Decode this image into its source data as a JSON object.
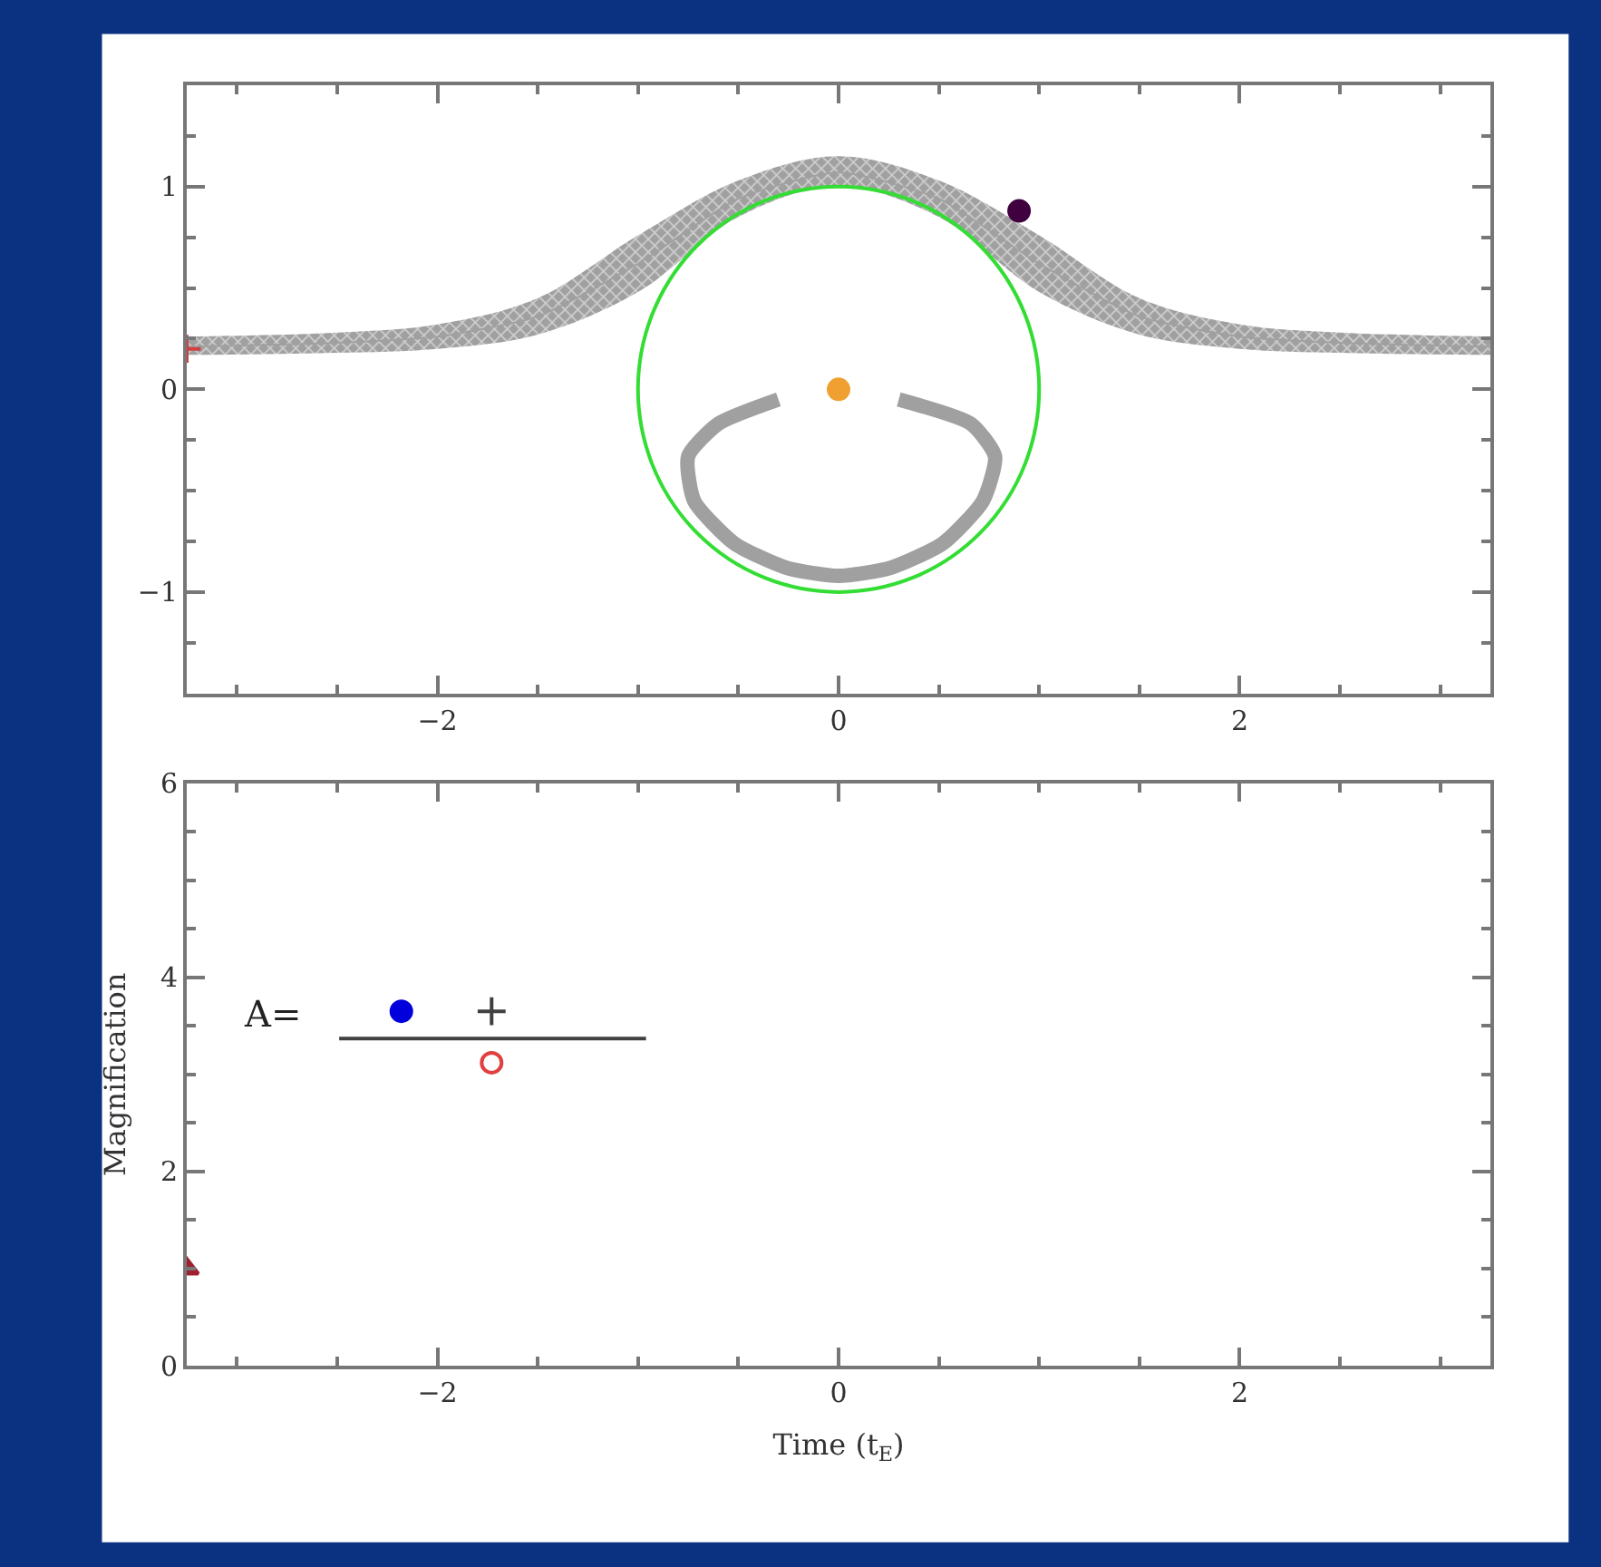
{
  "chart_data": [
    {
      "type": "line",
      "xlim": [
        -3.25,
        3.25
      ],
      "ylim": [
        -1.5,
        1.5
      ],
      "xticks": [
        -2,
        0,
        2
      ],
      "yticks": [
        -1,
        0,
        1
      ],
      "series": [
        {
          "color": "#a0a0a0",
          "marker": "none",
          "x": [
            -3.25,
            -2.5,
            -2,
            -1.5,
            -1,
            -0.5,
            0,
            0.5,
            1,
            1.5,
            2,
            2.5,
            3.25
          ],
          "values": [
            0.21,
            0.23,
            0.26,
            0.36,
            0.62,
            0.94,
            1.07,
            0.94,
            0.62,
            0.36,
            0.26,
            0.23,
            0.21
          ],
          "lower": [
            0.17,
            0.18,
            0.2,
            0.27,
            0.48,
            0.85,
            1.0,
            0.85,
            0.48,
            0.27,
            0.2,
            0.18,
            0.17
          ],
          "upper": [
            0.26,
            0.28,
            0.32,
            0.45,
            0.76,
            1.03,
            1.15,
            1.03,
            0.76,
            0.45,
            0.32,
            0.28,
            0.26
          ]
        },
        {
          "color": "#a0a0a0",
          "marker": "none",
          "x": [
            -0.3,
            -0.6,
            -0.75,
            -0.72,
            -0.52,
            -0.26,
            0,
            0.26,
            0.52,
            0.72,
            0.78,
            0.66,
            0.3
          ],
          "values": [
            -0.05,
            -0.17,
            -0.33,
            -0.55,
            -0.76,
            -0.88,
            -0.92,
            -0.88,
            -0.76,
            -0.55,
            -0.33,
            -0.17,
            -0.05
          ]
        },
        {
          "type": "scatter",
          "color": "#f0a030",
          "marker": "circle",
          "x": [
            0
          ],
          "values": [
            0
          ]
        },
        {
          "type": "scatter",
          "color": "#400040",
          "marker": "circle",
          "x": [
            0.9
          ],
          "values": [
            0.88
          ]
        },
        {
          "type": "scatter",
          "color": "#d04040",
          "marker": "cross",
          "x": [
            -3.25
          ],
          "values": [
            0.2
          ]
        }
      ]
    },
    {
      "type": "scatter",
      "xlim": [
        -3.25,
        3.25
      ],
      "ylim": [
        0,
        6
      ],
      "xticks": [
        -2,
        0,
        2
      ],
      "yticks": [
        0,
        2,
        4,
        6
      ],
      "xlabel": "Time (t$_{E}$)",
      "ylabel": "Magnification",
      "annotations": [
        "A="
      ],
      "series": [
        {
          "color": "#a02030",
          "marker": "triangle",
          "x": [
            -3.25
          ],
          "values": [
            1.0
          ]
        },
        {
          "color": "#0000dd",
          "marker": "circle",
          "x": [
            -2.18
          ],
          "values": [
            3.65
          ]
        },
        {
          "color": "#404040",
          "marker": "cross",
          "x": [
            -1.73
          ],
          "values": [
            3.65
          ]
        },
        {
          "color": "#e04040",
          "marker": "circle-open",
          "x": [
            -1.73
          ],
          "values": [
            3.12
          ]
        },
        {
          "type": "line",
          "color": "#404040",
          "marker": "none",
          "x": [
            -2.49,
            -0.96
          ],
          "values": [
            3.37,
            3.37
          ]
        }
      ]
    }
  ]
}
